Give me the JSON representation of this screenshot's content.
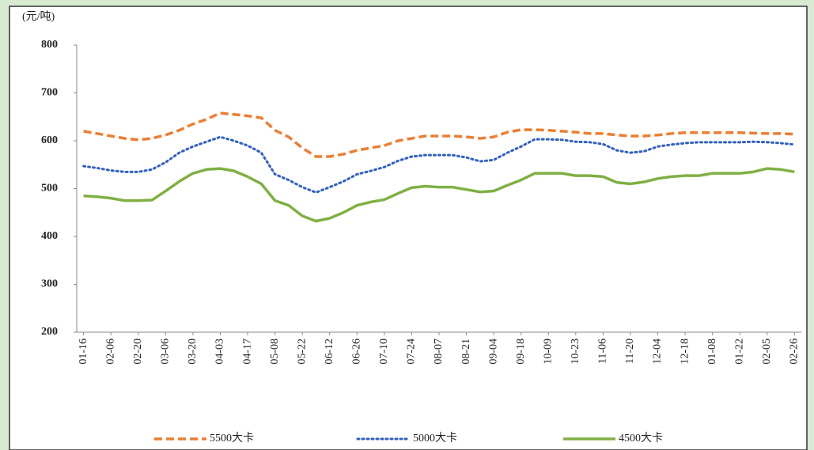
{
  "chart_data": {
    "type": "line",
    "y_axis_label": "(元/吨)",
    "categories": [
      "01-16",
      null,
      "02-06",
      null,
      "02-20",
      null,
      "03-06",
      null,
      "03-20",
      null,
      "04-03",
      null,
      "04-17",
      null,
      "05-08",
      null,
      "05-22",
      null,
      "06-12",
      null,
      "06-26",
      null,
      "07-10",
      null,
      "07-24",
      null,
      "08-07",
      null,
      "08-21",
      null,
      "09-04",
      null,
      "09-18",
      null,
      "10-09",
      null,
      "10-23",
      null,
      "11-06",
      null,
      "11-20",
      null,
      "12-04",
      null,
      "12-18",
      null,
      "01-08",
      null,
      "01-22",
      null,
      "02-05",
      null,
      "02-26"
    ],
    "series": [
      {
        "name": "5500大卡",
        "color": "#ed7d31",
        "style": "dashed",
        "values": [
          620,
          615,
          610,
          605,
          602,
          605,
          612,
          622,
          635,
          645,
          658,
          655,
          652,
          648,
          622,
          608,
          585,
          567,
          567,
          572,
          580,
          585,
          590,
          600,
          605,
          610,
          610,
          610,
          608,
          605,
          608,
          618,
          623,
          623,
          622,
          620,
          618,
          615,
          615,
          612,
          610,
          610,
          612,
          615,
          617,
          617,
          617,
          617,
          617,
          616,
          615,
          615,
          614
        ]
      },
      {
        "name": "5000大卡",
        "color": "#2f5fc4",
        "style": "dotted",
        "values": [
          547,
          543,
          538,
          535,
          535,
          540,
          555,
          575,
          588,
          598,
          608,
          600,
          590,
          575,
          530,
          518,
          503,
          492,
          503,
          515,
          530,
          537,
          545,
          558,
          567,
          570,
          570,
          570,
          565,
          557,
          560,
          575,
          588,
          603,
          603,
          602,
          598,
          597,
          593,
          580,
          575,
          578,
          588,
          592,
          595,
          597,
          597,
          597,
          597,
          598,
          597,
          595,
          592
        ]
      },
      {
        "name": "4500大卡",
        "color": "#7fb043",
        "style": "solid",
        "values": [
          485,
          483,
          480,
          475,
          475,
          476,
          495,
          515,
          532,
          540,
          542,
          537,
          525,
          510,
          475,
          465,
          443,
          432,
          438,
          450,
          465,
          472,
          477,
          490,
          502,
          505,
          503,
          503,
          498,
          493,
          495,
          507,
          518,
          532,
          532,
          532,
          527,
          527,
          525,
          513,
          510,
          514,
          521,
          525,
          527,
          527,
          532,
          532,
          532,
          535,
          542,
          540,
          535
        ]
      }
    ],
    "ylim": [
      200,
      800
    ],
    "yticks": [
      200,
      300,
      400,
      500,
      600,
      700,
      800
    ],
    "legend": "bottom"
  }
}
